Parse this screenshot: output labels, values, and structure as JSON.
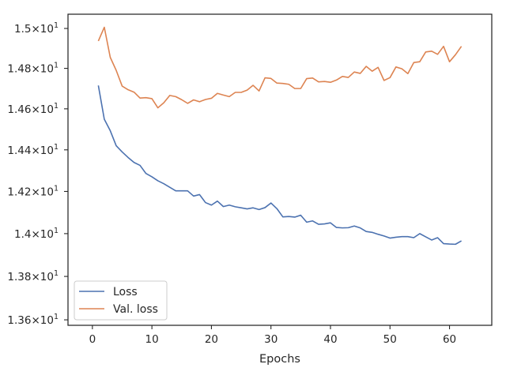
{
  "chart_data": {
    "type": "line",
    "title": "",
    "xlabel": "Epochs",
    "ylabel": "",
    "xlim": [
      -4.1,
      67.1
    ],
    "ylim": [
      13.575,
      15.072
    ],
    "y_scale": "log",
    "grid": false,
    "legend_position": "lower-left",
    "x_ticks": [
      0,
      10,
      20,
      30,
      40,
      50,
      60
    ],
    "y_ticks": [
      {
        "value": 13.6,
        "mantissa": "1.36"
      },
      {
        "value": 13.8,
        "mantissa": "1.38"
      },
      {
        "value": 14.0,
        "mantissa": "1.4"
      },
      {
        "value": 14.2,
        "mantissa": "1.42"
      },
      {
        "value": 14.4,
        "mantissa": "1.44"
      },
      {
        "value": 14.6,
        "mantissa": "1.46"
      },
      {
        "value": 14.8,
        "mantissa": "1.48"
      },
      {
        "value": 15.0,
        "mantissa": "1.5"
      }
    ],
    "y_tick_suffix": "×10",
    "y_tick_exponent": "1",
    "x": [
      1,
      2,
      3,
      4,
      5,
      6,
      7,
      8,
      9,
      10,
      11,
      12,
      13,
      14,
      15,
      16,
      17,
      18,
      19,
      20,
      21,
      22,
      23,
      24,
      25,
      26,
      27,
      28,
      29,
      30,
      31,
      32,
      33,
      34,
      35,
      36,
      37,
      38,
      39,
      40,
      41,
      42,
      43,
      44,
      45,
      46,
      47,
      48,
      49,
      50,
      51,
      52,
      53,
      54,
      55,
      56,
      57,
      58,
      59,
      60,
      61,
      62
    ],
    "series": [
      {
        "name": "Loss",
        "color": "#4c72b0",
        "values": [
          14.715,
          14.549,
          14.493,
          14.42,
          14.39,
          14.363,
          14.339,
          14.325,
          14.286,
          14.27,
          14.251,
          14.237,
          14.22,
          14.203,
          14.203,
          14.203,
          14.178,
          14.185,
          14.147,
          14.135,
          14.154,
          14.128,
          14.135,
          14.127,
          14.122,
          14.117,
          14.122,
          14.114,
          14.123,
          14.145,
          14.118,
          14.079,
          14.081,
          14.078,
          14.087,
          14.054,
          14.06,
          14.044,
          14.046,
          14.051,
          14.029,
          14.027,
          14.028,
          14.036,
          14.027,
          14.01,
          14.006,
          13.997,
          13.989,
          13.979,
          13.983,
          13.986,
          13.986,
          13.981,
          14.0,
          13.985,
          13.97,
          13.981,
          13.953,
          13.951,
          13.95,
          13.966
        ]
      },
      {
        "name": "Val. loss",
        "color": "#dd8452",
        "values": [
          14.937,
          15.006,
          14.855,
          14.79,
          14.712,
          14.694,
          14.682,
          14.653,
          14.655,
          14.65,
          14.605,
          14.63,
          14.666,
          14.66,
          14.645,
          14.627,
          14.644,
          14.635,
          14.646,
          14.652,
          14.676,
          14.668,
          14.66,
          14.681,
          14.681,
          14.692,
          14.716,
          14.688,
          14.753,
          14.75,
          14.727,
          14.725,
          14.721,
          14.7,
          14.7,
          14.749,
          14.752,
          14.733,
          14.735,
          14.731,
          14.742,
          14.76,
          14.755,
          14.782,
          14.775,
          14.81,
          14.786,
          14.805,
          14.74,
          14.754,
          14.807,
          14.798,
          14.774,
          14.829,
          14.833,
          14.882,
          14.886,
          14.87,
          14.91,
          14.833,
          14.868,
          14.91
        ]
      }
    ]
  }
}
